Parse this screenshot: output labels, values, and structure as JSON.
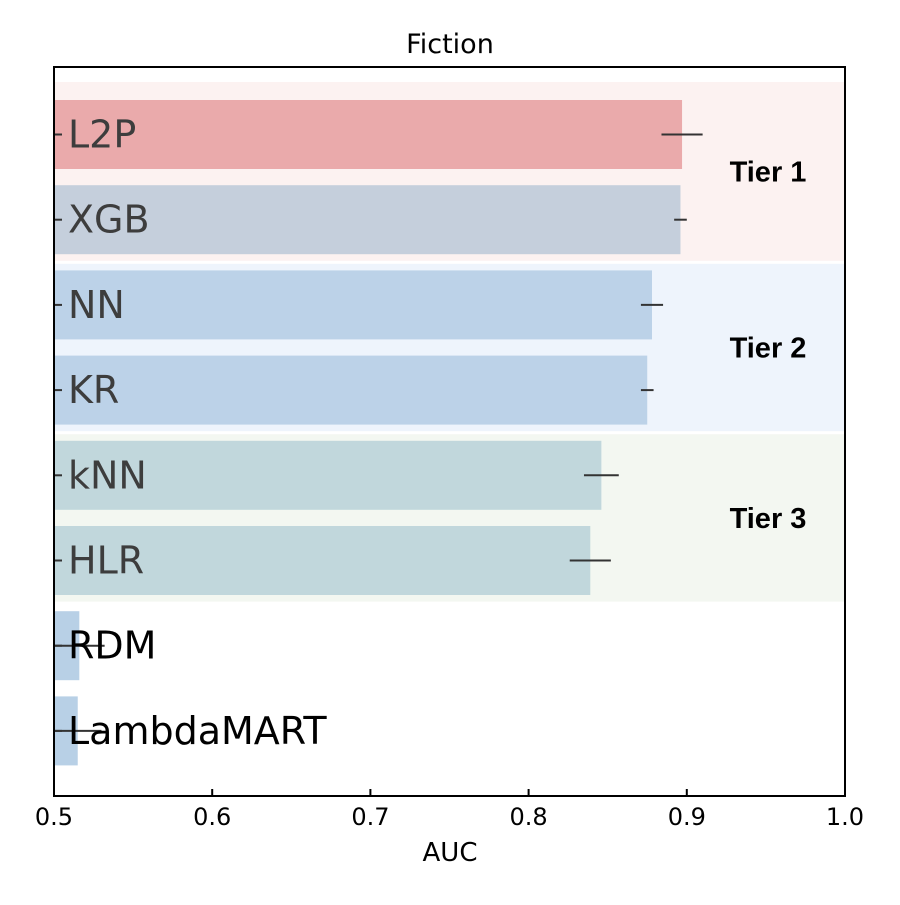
{
  "chart_data": {
    "type": "bar",
    "orientation": "horizontal",
    "title": "Fiction",
    "xlabel": "AUC",
    "ylabel": "",
    "xlim": [
      0.5,
      1.0
    ],
    "xticks": [
      "0.5",
      "0.6",
      "0.7",
      "0.8",
      "0.9",
      "1.0"
    ],
    "grid": false,
    "categories": [
      "L2P",
      "XGB",
      "NN",
      "KR",
      "kNN",
      "HLR",
      "RDM",
      "LambdaMART"
    ],
    "values": [
      0.897,
      0.896,
      0.878,
      0.875,
      0.846,
      0.839,
      0.516,
      0.515
    ],
    "errors": [
      0.013,
      0.004,
      0.007,
      0.004,
      0.011,
      0.013,
      0.016,
      0.015
    ],
    "bar_colors": [
      "#eaaaab",
      "#c5cfdc",
      "#bcd2e8",
      "#bcd2e8",
      "#c1d7dc",
      "#c1d7dc",
      "#b8d0e6",
      "#b8d0e6"
    ],
    "tiers": [
      {
        "label": "Tier 1",
        "members": [
          "L2P",
          "XGB"
        ],
        "color": "#fcf2f1"
      },
      {
        "label": "Tier 2",
        "members": [
          "NN",
          "KR"
        ],
        "color": "#eef4fc"
      },
      {
        "label": "Tier 3",
        "members": [
          "kNN",
          "HLR"
        ],
        "color": "#f3f7f1"
      }
    ]
  }
}
